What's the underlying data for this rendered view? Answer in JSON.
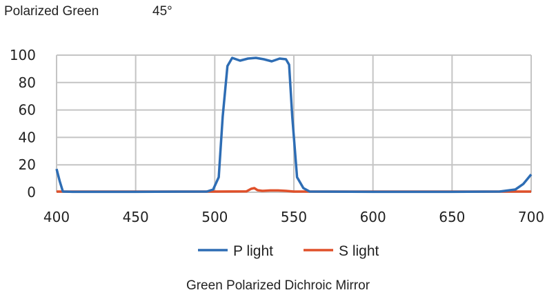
{
  "header": {
    "title": "Polarized Green",
    "angle": "45°"
  },
  "caption": "Green Polarized Dichroic Mirror",
  "chart_data": {
    "type": "line",
    "title": "",
    "xlabel": "",
    "ylabel": "",
    "xlim": [
      400,
      700
    ],
    "ylim": [
      0,
      100
    ],
    "xticks": [
      400,
      450,
      500,
      550,
      600,
      650,
      700
    ],
    "yticks": [
      0,
      20,
      40,
      60,
      80,
      100
    ],
    "grid": true,
    "legend": "bottom",
    "series": [
      {
        "name": "P light",
        "color": "#2e6db4",
        "x": [
          400,
          402,
          404,
          410,
          450,
          495,
          499,
          502.5,
          505,
          508,
          511,
          516,
          521,
          526,
          531,
          536,
          541,
          545,
          547,
          549,
          552,
          556,
          560,
          600,
          650,
          680,
          690,
          695,
          700
        ],
        "y": [
          17,
          8,
          0.5,
          0.3,
          0.3,
          0.5,
          2,
          11,
          55,
          92,
          98,
          96,
          97.5,
          98,
          97,
          95.5,
          97.5,
          97,
          93,
          55,
          11,
          3,
          0.5,
          0.3,
          0.3,
          0.5,
          2,
          6,
          13
        ]
      },
      {
        "name": "S light",
        "color": "#e0502a",
        "x": [
          400,
          450,
          500,
          520,
          523,
          525,
          527,
          530,
          535,
          540,
          545,
          550,
          600,
          650,
          700
        ],
        "y": [
          0.5,
          0.5,
          0.5,
          0.6,
          2.5,
          3,
          1.5,
          1,
          1.3,
          1.3,
          1,
          0.5,
          0.5,
          0.5,
          0.5
        ]
      }
    ]
  }
}
